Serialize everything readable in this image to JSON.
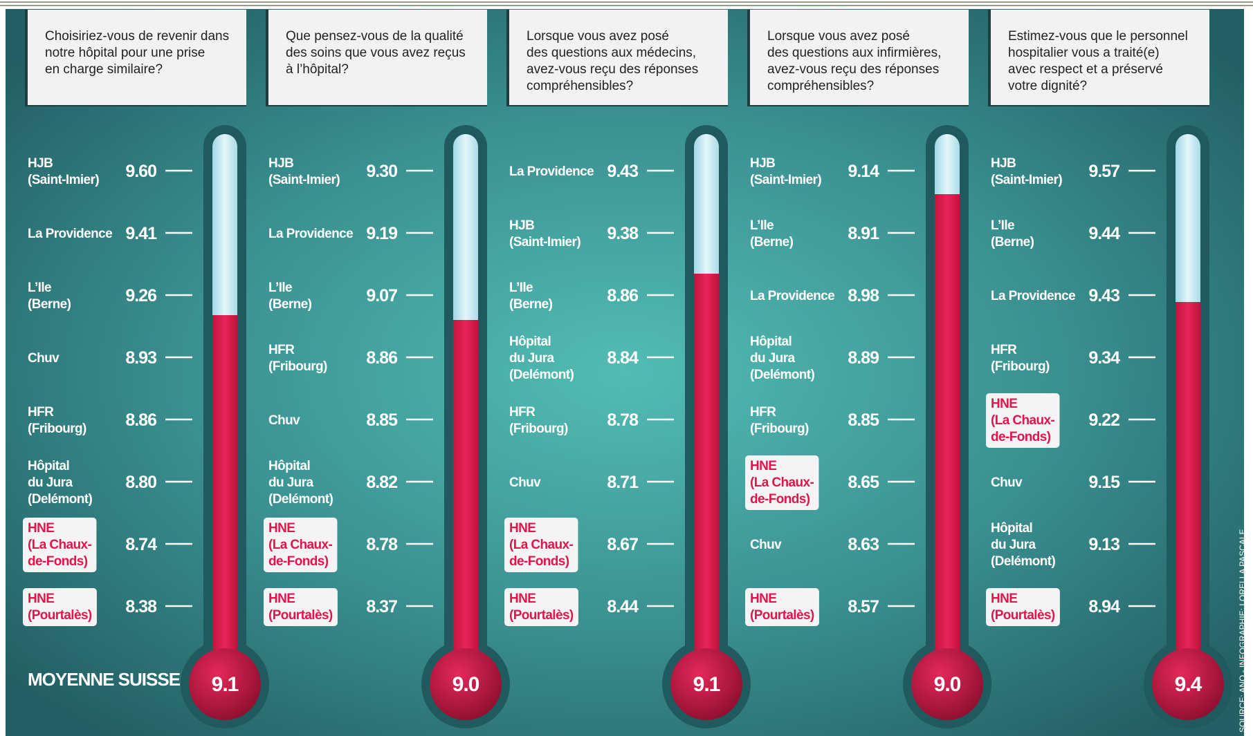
{
  "average_label": "MOYENNE SUISSE",
  "source": "SOURCE: ANQ - INFOGRAPHIE: LORELLA PASCALE",
  "panels": [
    {
      "question": [
        "Choisiriez-vous de revenir dans",
        "notre hôpital pour une prise",
        "en charge similaire?"
      ],
      "rows": [
        {
          "label": [
            "HJB",
            "(Saint-Imier)"
          ],
          "score": "9.60"
        },
        {
          "label": [
            "La Providence"
          ],
          "score": "9.41"
        },
        {
          "label": [
            "L’Ile",
            "(Berne)"
          ],
          "score": "9.26"
        },
        {
          "label": [
            "Chuv"
          ],
          "score": "8.93"
        },
        {
          "label": [
            "HFR",
            "(Fribourg)"
          ],
          "score": "8.86"
        },
        {
          "label": [
            "Hôpital",
            "du Jura",
            "(Delémont)"
          ],
          "score": "8.80"
        },
        {
          "label": [
            "HNE",
            "(La Chaux-",
            "de-Fonds)"
          ],
          "score": "8.74",
          "highlight": true
        },
        {
          "label": [
            "HNE",
            "(Pourtalès)"
          ],
          "score": "8.38",
          "highlight": true
        }
      ],
      "average": "9.1"
    },
    {
      "question": [
        "Que pensez-vous de la qualité",
        "des soins que vous avez reçus",
        "à l’hôpital?"
      ],
      "rows": [
        {
          "label": [
            "HJB",
            "(Saint-Imier)"
          ],
          "score": "9.30"
        },
        {
          "label": [
            "La Providence"
          ],
          "score": "9.19"
        },
        {
          "label": [
            "L’Ile",
            "(Berne)"
          ],
          "score": "9.07"
        },
        {
          "label": [
            "HFR",
            "(Fribourg)"
          ],
          "score": "8.86"
        },
        {
          "label": [
            "Chuv"
          ],
          "score": "8.85"
        },
        {
          "label": [
            "Hôpital",
            "du Jura",
            "(Delémont)"
          ],
          "score": "8.82"
        },
        {
          "label": [
            "HNE",
            "(La Chaux-",
            "de-Fonds)"
          ],
          "score": "8.78",
          "highlight": true
        },
        {
          "label": [
            "HNE",
            "(Pourtalès)"
          ],
          "score": "8.37",
          "highlight": true
        }
      ],
      "average": "9.0"
    },
    {
      "question": [
        "Lorsque vous avez posé",
        "des questions aux médecins,",
        "avez-vous reçu des réponses",
        "compréhensibles?"
      ],
      "rows": [
        {
          "label": [
            "La Providence"
          ],
          "score": "9.43"
        },
        {
          "label": [
            "HJB",
            "(Saint-Imier)"
          ],
          "score": "9.38"
        },
        {
          "label": [
            "L’Ile",
            "(Berne)"
          ],
          "score": "8.86"
        },
        {
          "label": [
            "Hôpital",
            "du Jura",
            "(Delémont)"
          ],
          "score": "8.84"
        },
        {
          "label": [
            "HFR",
            "(Fribourg)"
          ],
          "score": "8.78"
        },
        {
          "label": [
            "Chuv"
          ],
          "score": "8.71"
        },
        {
          "label": [
            "HNE",
            "(La Chaux-",
            "de-Fonds)"
          ],
          "score": "8.67",
          "highlight": true
        },
        {
          "label": [
            "HNE",
            "(Pourtalès)"
          ],
          "score": "8.44",
          "highlight": true
        }
      ],
      "average": "9.1"
    },
    {
      "question": [
        "Lorsque vous avez posé",
        "des questions aux infirmières,",
        "avez-vous reçu des réponses",
        "compréhensibles?"
      ],
      "rows": [
        {
          "label": [
            "HJB",
            "(Saint-Imier)"
          ],
          "score": "9.14"
        },
        {
          "label": [
            "L’Ile",
            "(Berne)"
          ],
          "score": "8.91"
        },
        {
          "label": [
            "La Providence"
          ],
          "score": "8.98"
        },
        {
          "label": [
            "Hôpital",
            "du Jura",
            "(Delémont)"
          ],
          "score": "8.89"
        },
        {
          "label": [
            "HFR",
            "(Fribourg)"
          ],
          "score": "8.85"
        },
        {
          "label": [
            "HNE",
            "(La Chaux-",
            "de-Fonds)"
          ],
          "score": "8.65",
          "highlight": true
        },
        {
          "label": [
            "Chuv"
          ],
          "score": "8.63"
        },
        {
          "label": [
            "HNE",
            "(Pourtalès)"
          ],
          "score": "8.57",
          "highlight": true
        }
      ],
      "average": "9.0"
    },
    {
      "question": [
        "Estimez-vous que le personnel",
        "hospitalier vous a traité(e)",
        "avec respect et a préservé",
        "votre dignité?"
      ],
      "rows": [
        {
          "label": [
            "HJB",
            "(Saint-Imier)"
          ],
          "score": "9.57"
        },
        {
          "label": [
            "L’Ile",
            "(Berne)"
          ],
          "score": "9.44"
        },
        {
          "label": [
            "La Providence"
          ],
          "score": "9.43"
        },
        {
          "label": [
            "HFR",
            "(Fribourg)"
          ],
          "score": "9.34"
        },
        {
          "label": [
            "HNE",
            "(La Chaux-",
            "de-Fonds)"
          ],
          "score": "9.22",
          "highlight": true
        },
        {
          "label": [
            "Chuv"
          ],
          "score": "9.15"
        },
        {
          "label": [
            "Hôpital",
            "du Jura",
            "(Delémont)"
          ],
          "score": "9.13"
        },
        {
          "label": [
            "HNE",
            "(Pourtalès)"
          ],
          "score": "8.94",
          "highlight": true
        }
      ],
      "average": "9.4"
    }
  ]
}
